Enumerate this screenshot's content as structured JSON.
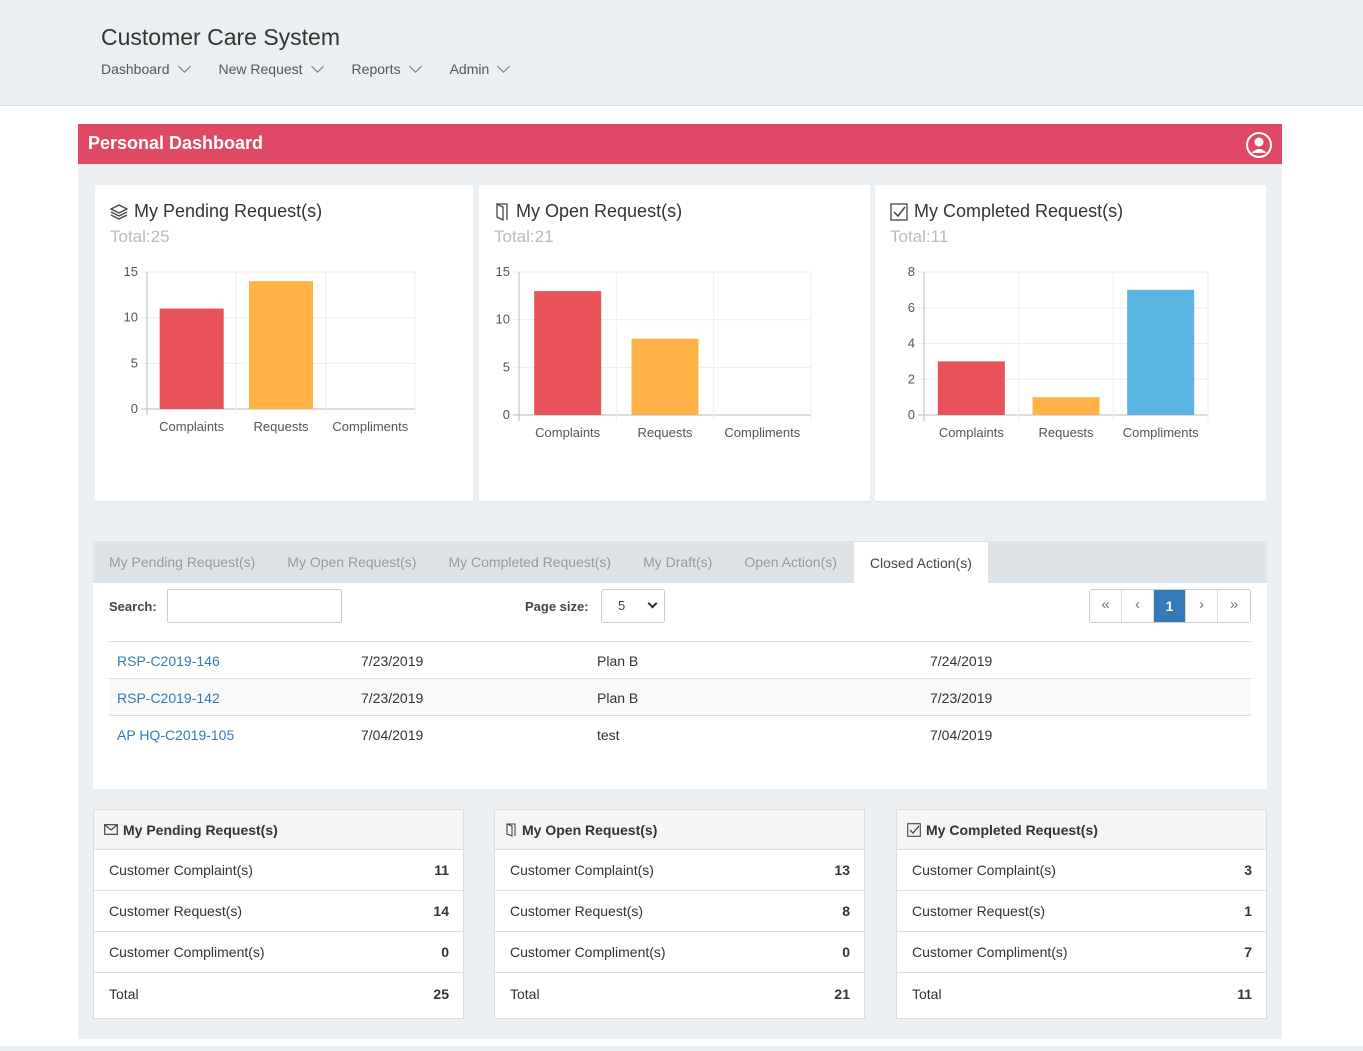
{
  "app": {
    "title": "Customer Care System"
  },
  "nav": [
    {
      "label": "Dashboard"
    },
    {
      "label": "New Request"
    },
    {
      "label": "Reports"
    },
    {
      "label": "Admin"
    }
  ],
  "dashboard": {
    "title": "Personal Dashboard",
    "header_color": "#de4a66"
  },
  "colors": {
    "complaints": "#e8535a",
    "requests": "#ffb347",
    "compliments": "#5ab4e2",
    "link": "#337ab7"
  },
  "cards": [
    {
      "title": "My Pending Request(s)",
      "total": "Total:25",
      "icon": "layers-icon"
    },
    {
      "title": "My Open Request(s)",
      "total": "Total:21",
      "icon": "door-icon"
    },
    {
      "title": "My Completed Request(s)",
      "total": "Total:11",
      "icon": "checkbox-icon"
    }
  ],
  "chart_data": [
    {
      "type": "bar",
      "categories": [
        "Complaints",
        "Requests",
        "Compliments"
      ],
      "values": [
        11,
        14,
        0
      ],
      "ylim": [
        0,
        15
      ],
      "yticks": [
        0,
        5,
        10,
        15
      ],
      "grid": true
    },
    {
      "type": "bar",
      "categories": [
        "Complaints",
        "Requests",
        "Compliments"
      ],
      "values": [
        13,
        8,
        0
      ],
      "ylim": [
        0,
        15
      ],
      "yticks": [
        0,
        5,
        10,
        15
      ],
      "grid": true
    },
    {
      "type": "bar",
      "categories": [
        "Complaints",
        "Requests",
        "Compliments"
      ],
      "values": [
        3,
        1,
        7
      ],
      "ylim": [
        0,
        8
      ],
      "yticks": [
        0,
        2,
        4,
        6,
        8
      ],
      "grid": true
    }
  ],
  "tabs": [
    {
      "label": "My Pending Request(s)"
    },
    {
      "label": "My Open Request(s)"
    },
    {
      "label": "My Completed Request(s)"
    },
    {
      "label": "My Draft(s)"
    },
    {
      "label": "Open Action(s)"
    },
    {
      "label": "Closed Action(s)"
    }
  ],
  "active_tab": "Closed Action(s)",
  "controls": {
    "search_label": "Search:",
    "search_value": "",
    "page_size_label": "Page size:",
    "page_size": "5",
    "pager": {
      "first": "«",
      "prev": "‹",
      "current": "1",
      "next": "›",
      "last": "»"
    }
  },
  "rows": [
    {
      "ref": "RSP-C2019-146",
      "date": "7/23/2019",
      "action": "Plan B",
      "closed": "7/24/2019"
    },
    {
      "ref": "RSP-C2019-142",
      "date": "7/23/2019",
      "action": "Plan B",
      "closed": "7/23/2019"
    },
    {
      "ref": "AP HQ-C2019-105",
      "date": "7/04/2019",
      "action": "test",
      "closed": "7/04/2019"
    }
  ],
  "summaries": [
    {
      "title": "My Pending Request(s)",
      "icon": "envelope-icon",
      "rows": [
        {
          "label": "Customer Complaint(s)",
          "value": "11"
        },
        {
          "label": "Customer Request(s)",
          "value": "14"
        },
        {
          "label": "Customer Compliment(s)",
          "value": "0"
        },
        {
          "label": "Total",
          "value": "25"
        }
      ]
    },
    {
      "title": "My Open Request(s)",
      "icon": "door-icon",
      "rows": [
        {
          "label": "Customer Complaint(s)",
          "value": "13"
        },
        {
          "label": "Customer Request(s)",
          "value": "8"
        },
        {
          "label": "Customer Compliment(s)",
          "value": "0"
        },
        {
          "label": "Total",
          "value": "21"
        }
      ]
    },
    {
      "title": "My Completed Request(s)",
      "icon": "checkbox-icon",
      "rows": [
        {
          "label": "Customer Complaint(s)",
          "value": "3"
        },
        {
          "label": "Customer Request(s)",
          "value": "1"
        },
        {
          "label": "Customer Compliment(s)",
          "value": "7"
        },
        {
          "label": "Total",
          "value": "11"
        }
      ]
    }
  ]
}
